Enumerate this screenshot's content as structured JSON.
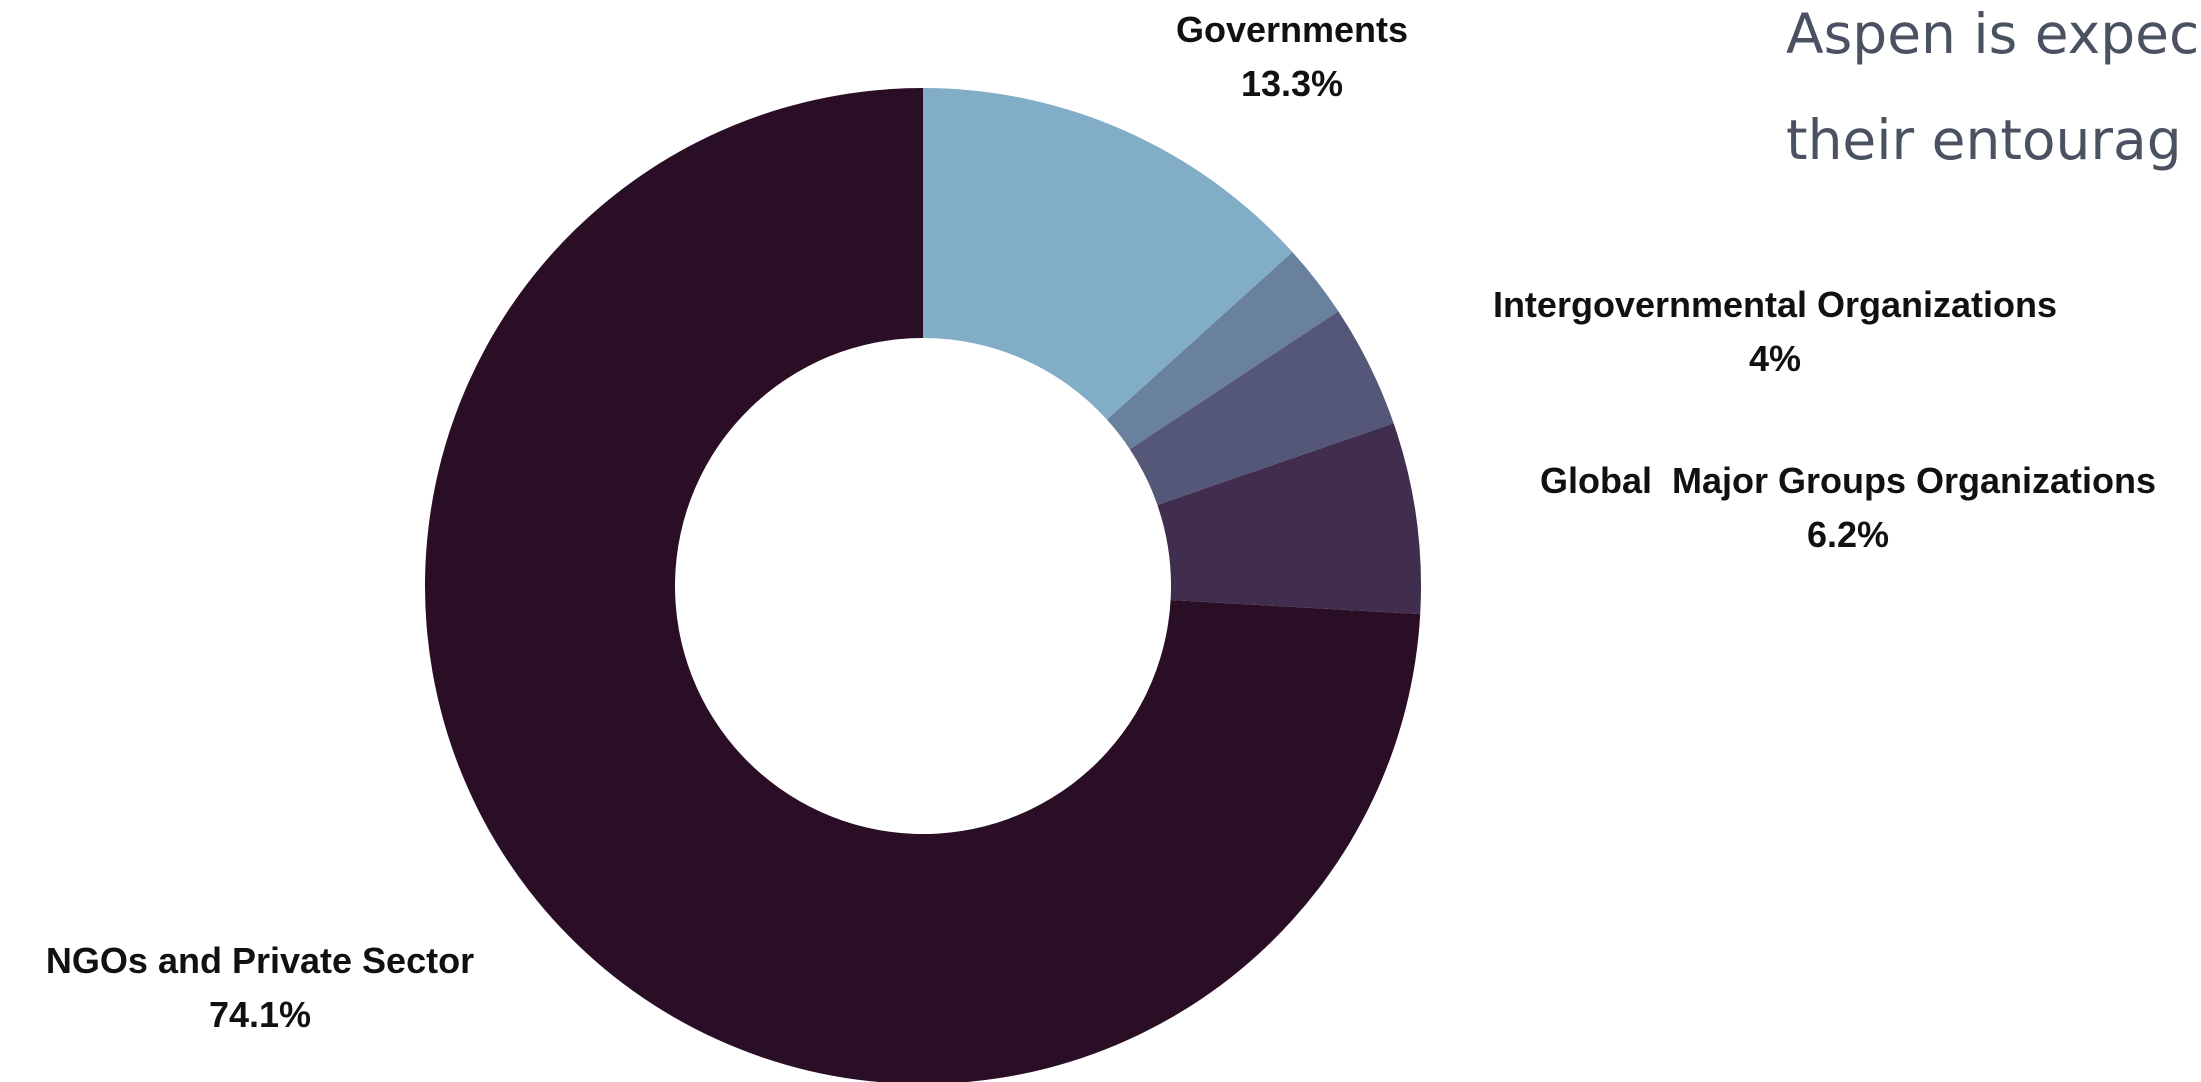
{
  "intro_text": {
    "line1": "Aspen is expec",
    "line2": "their entourag"
  },
  "chart_data": {
    "type": "pie",
    "variant": "donut",
    "title": "",
    "start_angle_deg": 0,
    "direction": "clockwise",
    "slices": [
      {
        "label": "Governments",
        "value_label": "13.3%",
        "value": 13.3,
        "color": "#82adc6"
      },
      {
        "label": "",
        "value_label": "",
        "value": 2.4,
        "color": "#6a819e"
      },
      {
        "label": "Intergovernmental Organizations",
        "value_label": "4%",
        "value": 4.0,
        "color": "#555778"
      },
      {
        "label": "Global  Major Groups Organizations",
        "value_label": "6.2%",
        "value": 6.2,
        "color": "#412e4f"
      },
      {
        "label": "NGOs and Private Sector",
        "value_label": "74.1%",
        "value": 74.1,
        "color": "#2a0e26"
      }
    ]
  }
}
